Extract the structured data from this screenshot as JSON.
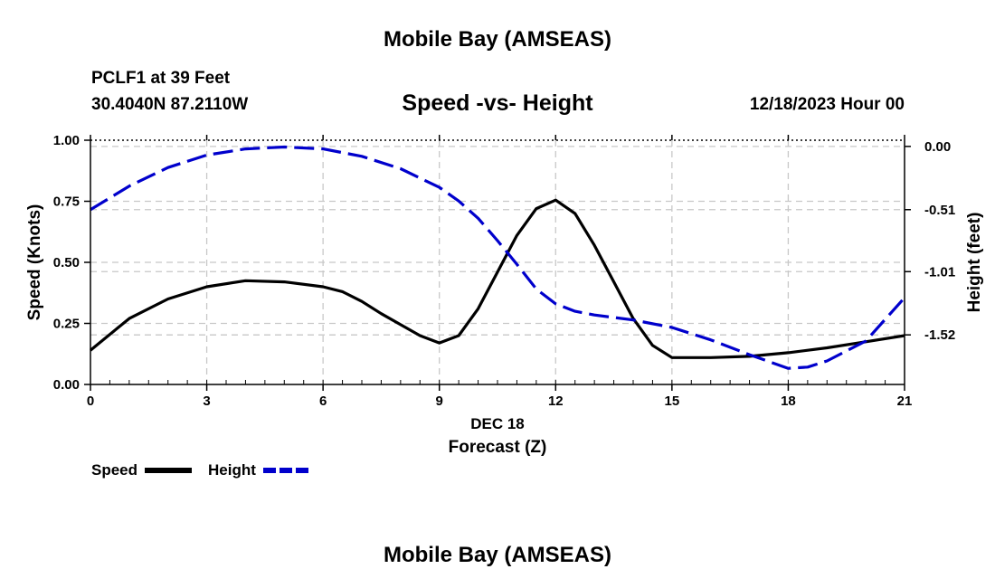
{
  "header": {
    "title": "Mobile Bay (AMSEAS)",
    "station": "PCLF1 at 39 Feet",
    "coordinates": "30.4040N  87.2110W",
    "subtitle": "Speed -vs- Height",
    "date": "12/18/2023 Hour 00"
  },
  "footer": {
    "title": "Mobile Bay (AMSEAS)"
  },
  "chart_data": {
    "type": "line",
    "xlabel": "Forecast (Z)",
    "xlabel_date": "DEC 18",
    "ylabel_left": "Speed (Knots)",
    "ylabel_right": "Height (feet)",
    "xlim": [
      0,
      21
    ],
    "ylim_left": [
      0,
      1
    ],
    "ylim_right": [
      -1.92,
      0.05
    ],
    "x_ticks": [
      0,
      3,
      6,
      9,
      12,
      15,
      18,
      21
    ],
    "x_tick_labels": [
      "0",
      "3",
      "6",
      "9",
      "12",
      "15",
      "18",
      "21"
    ],
    "y_left_ticks": [
      0,
      0.25,
      0.5,
      0.75,
      1.0
    ],
    "y_left_tick_labels": [
      "0.00",
      "0.25",
      "0.50",
      "0.75",
      "1.00"
    ],
    "y_right_ticks": [
      0.0,
      -0.51,
      -1.01,
      -1.52
    ],
    "y_right_tick_labels": [
      "0.00",
      "-0.51",
      "-1.01",
      "-1.52"
    ],
    "grid": true,
    "colors": {
      "speed": "#000000",
      "height": "#0000cc",
      "grid": "#c8c8c8"
    },
    "series": [
      {
        "name": "Speed",
        "axis": "left",
        "style": "solid",
        "x": [
          0,
          1,
          2,
          3,
          4,
          5,
          6,
          6.5,
          7,
          7.5,
          8,
          8.5,
          9,
          9.5,
          10,
          10.5,
          11,
          11.5,
          12,
          12.5,
          13,
          13.5,
          14,
          14.5,
          15,
          16,
          17,
          18,
          19,
          20,
          21
        ],
        "values": [
          0.14,
          0.27,
          0.35,
          0.4,
          0.425,
          0.42,
          0.4,
          0.38,
          0.34,
          0.29,
          0.245,
          0.2,
          0.17,
          0.2,
          0.31,
          0.46,
          0.61,
          0.72,
          0.755,
          0.7,
          0.57,
          0.42,
          0.27,
          0.16,
          0.11,
          0.11,
          0.115,
          0.13,
          0.15,
          0.175,
          0.2
        ]
      },
      {
        "name": "Height",
        "axis": "right",
        "style": "dashed",
        "x": [
          0,
          1,
          2,
          3,
          4,
          5,
          6,
          7,
          8,
          9,
          9.5,
          10,
          10.5,
          11,
          11.5,
          12,
          12.5,
          13,
          14,
          15,
          16,
          17,
          18,
          18.5,
          19,
          20,
          21
        ],
        "values": [
          -0.51,
          -0.32,
          -0.17,
          -0.07,
          -0.02,
          -0.005,
          -0.02,
          -0.08,
          -0.18,
          -0.33,
          -0.44,
          -0.58,
          -0.76,
          -0.95,
          -1.15,
          -1.27,
          -1.33,
          -1.36,
          -1.4,
          -1.46,
          -1.56,
          -1.68,
          -1.79,
          -1.78,
          -1.73,
          -1.57,
          -1.22
        ]
      }
    ],
    "legend": [
      {
        "label": "Speed",
        "series": "Speed"
      },
      {
        "label": "Height",
        "series": "Height"
      }
    ]
  }
}
